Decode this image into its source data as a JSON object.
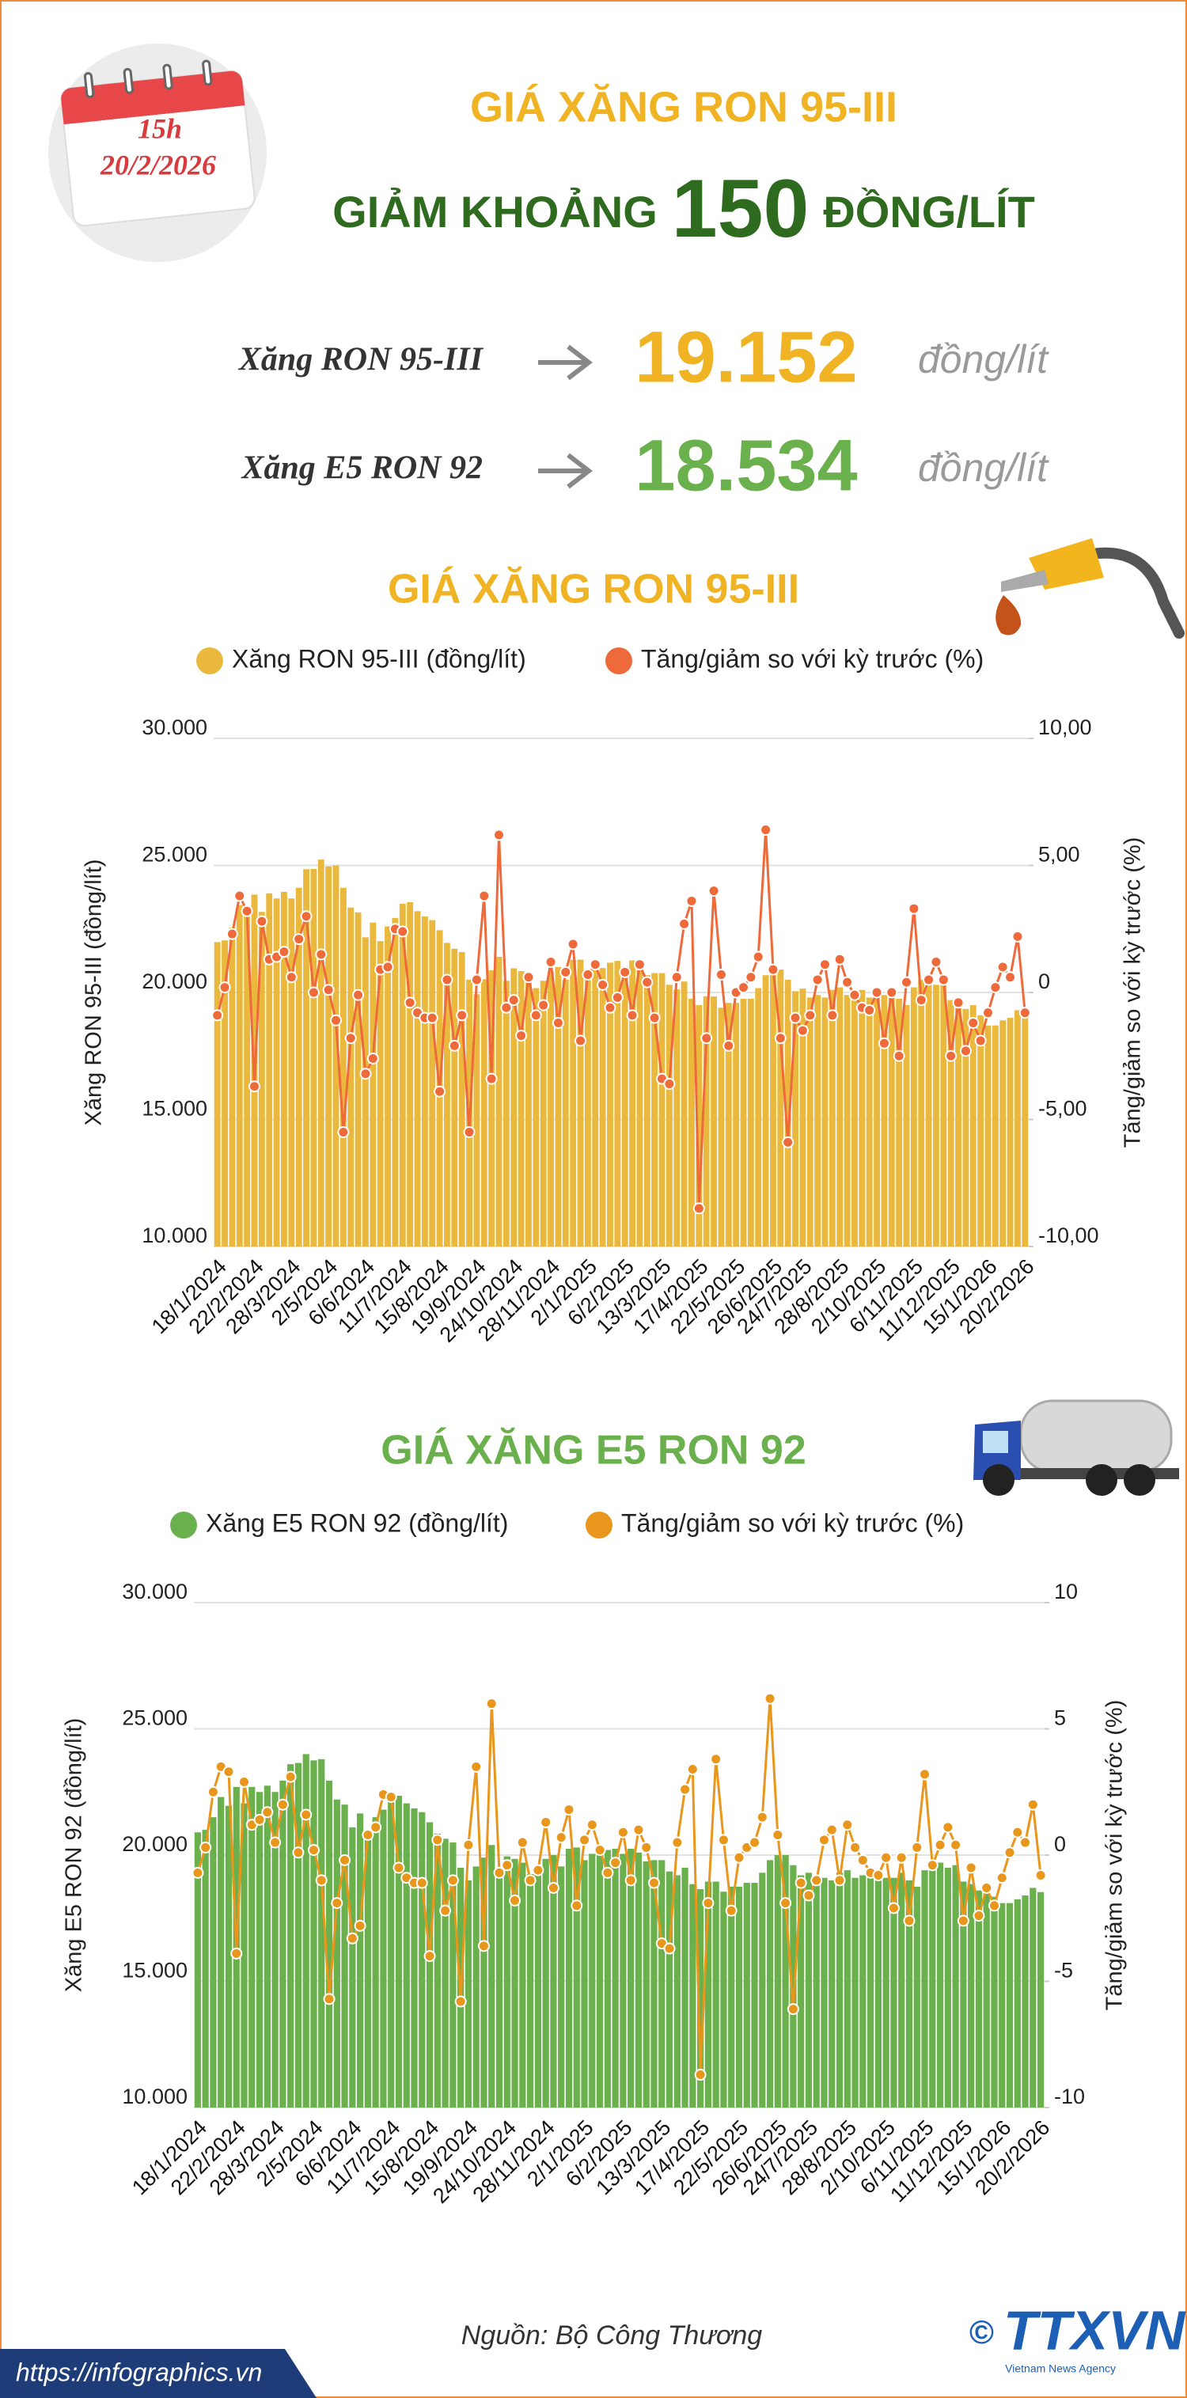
{
  "header": {
    "time": "15h",
    "date": "20/2/2026",
    "title": "GIÁ XĂNG RON 95-III",
    "subtitle_prefix": "GIẢM KHOẢNG",
    "subtitle_number": "150",
    "subtitle_suffix": "ĐỒNG/LÍT"
  },
  "prices": [
    {
      "label": "Xăng RON 95-III",
      "value": "19.152",
      "unit": "đồng/lít",
      "color": "#f0b323"
    },
    {
      "label": "Xăng E5 RON 92",
      "value": "18.534",
      "unit": "đồng/lít",
      "color": "#6ab04c"
    }
  ],
  "chart_data": [
    {
      "type": "bar_line",
      "title": "GIÁ XĂNG RON 95-III",
      "title_color": "#f0b323",
      "ylabel": "Xăng RON 95-III (đồng/lít)",
      "y2label": "Tăng/giảm so với kỳ trước (%)",
      "categories": [
        "18/1/2024",
        null,
        null,
        null,
        null,
        "22/2/2024",
        null,
        null,
        null,
        null,
        "28/3/2024",
        null,
        null,
        null,
        null,
        "2/5/2024",
        null,
        null,
        null,
        null,
        "6/6/2024",
        null,
        null,
        null,
        null,
        "11/7/2024",
        null,
        null,
        null,
        null,
        "15/8/2024",
        null,
        null,
        null,
        null,
        "19/9/2024",
        null,
        null,
        null,
        null,
        "24/10/2024",
        null,
        null,
        null,
        null,
        "28/11/2024",
        null,
        null,
        null,
        null,
        "2/1/2025",
        null,
        null,
        null,
        null,
        "6/2/2025",
        null,
        null,
        null,
        null,
        "13/3/2025",
        null,
        null,
        null,
        null,
        "17/4/2025",
        null,
        null,
        null,
        null,
        "22/5/2025",
        null,
        null,
        null,
        null,
        "26/6/2025",
        null,
        null,
        null,
        "24/7/2025",
        null,
        null,
        null,
        null,
        "28/8/2025",
        null,
        null,
        null,
        null,
        "2/10/2025",
        null,
        null,
        null,
        null,
        "6/11/2025",
        null,
        null,
        null,
        null,
        "11/12/2025",
        null,
        null,
        null,
        null,
        "15/1/2026",
        null,
        null,
        null,
        null,
        "20/2/2026"
      ],
      "series": [
        {
          "name": "Xăng RON 95-III (đồng/lít)",
          "type": "bar",
          "color": "#e9b83c",
          "values": [
            21980,
            22050,
            22550,
            23440,
            23050,
            23850,
            23170,
            23900,
            23700,
            23960,
            23700,
            24120,
            24850,
            24860,
            25230,
            24960,
            25000,
            24120,
            23340,
            23150,
            22170,
            22750,
            22020,
            22600,
            22930,
            23490,
            23550,
            23200,
            22990,
            22850,
            22450,
            21950,
            21720,
            21590,
            20500,
            19930,
            20520,
            20870,
            21400,
            20460,
            20950,
            20840,
            20660,
            20170,
            20460,
            20800,
            21000,
            20500,
            21280,
            21290,
            20740,
            21020,
            20960,
            21170,
            21240,
            21020,
            21260,
            21080,
            20680,
            20760,
            20760,
            20300,
            20120,
            20430,
            19750,
            19500,
            19850,
            19840,
            19400,
            19590,
            19590,
            19750,
            19750,
            20170,
            20680,
            20880,
            20900,
            20500,
            20050,
            20150,
            19800,
            19900,
            19800,
            20100,
            20200,
            19900,
            20000,
            20100,
            19800,
            19900,
            19900,
            20100,
            19750,
            19500,
            20200,
            20500,
            20500,
            20300,
            20400,
            19700,
            19600,
            19350,
            19500,
            19100,
            18700,
            18700,
            18900,
            19000,
            19300,
            19152
          ]
        },
        {
          "name": "Tăng/giảm so với kỳ trước (%)",
          "type": "line",
          "axis": "y2",
          "color": "#ee6a3a",
          "values": [
            -0.9,
            0.2,
            2.3,
            3.8,
            3.2,
            -3.7,
            2.8,
            1.3,
            1.4,
            1.6,
            0.6,
            2.1,
            3.0,
            0.0,
            1.5,
            0.1,
            -1.1,
            -5.5,
            -1.8,
            -0.1,
            -3.2,
            -2.6,
            0.9,
            1.0,
            2.5,
            2.4,
            -0.4,
            -0.8,
            -1.0,
            -1.0,
            -3.9,
            0.5,
            -2.1,
            -0.9,
            -5.5,
            0.5,
            3.8,
            -3.4,
            6.2,
            -0.6,
            -0.3,
            -1.7,
            0.6,
            -0.9,
            -0.5,
            1.2,
            -1.2,
            0.8,
            1.9,
            -1.9,
            0.7,
            1.1,
            0.3,
            -0.6,
            -0.2,
            0.8,
            -0.9,
            1.1,
            0.4,
            -1.0,
            -3.4,
            -3.6,
            0.6,
            2.7,
            3.6,
            -8.5,
            -1.8,
            4.0,
            0.7,
            -2.1,
            0.0,
            0.2,
            0.6,
            1.4,
            6.4,
            0.9,
            -1.8,
            -5.9,
            -1.0,
            -1.5,
            -0.9,
            0.5,
            1.1,
            -0.9,
            1.3,
            0.4,
            -0.1,
            -0.6,
            -0.7,
            0.0,
            -2.0,
            0.0,
            -2.5,
            0.4,
            3.3,
            -0.3,
            0.5,
            1.2,
            0.5,
            -2.5,
            -0.4,
            -2.3,
            -1.2,
            -1.9,
            -0.8,
            0.2,
            1.0,
            0.6,
            2.2,
            -0.8
          ]
        }
      ],
      "ylim": [
        10000,
        30000
      ],
      "yticks": [
        {
          "value": 10000,
          "label": "10.000"
        },
        {
          "value": 15000,
          "label": "15.000"
        },
        {
          "value": 20000,
          "label": "20.000"
        },
        {
          "value": 25000,
          "label": "25.000"
        },
        {
          "value": 30000,
          "label": "30.000"
        }
      ],
      "y2lim": [
        -10,
        10
      ],
      "y2ticks": [
        {
          "value": -10,
          "label": "-10,00"
        },
        {
          "value": -5,
          "label": "-5,00"
        },
        0,
        {
          "value": 5,
          "label": "5,00"
        },
        {
          "value": 10,
          "label": "10,00"
        }
      ],
      "grid": true
    },
    {
      "type": "bar_line",
      "title": "GIÁ XĂNG E5 RON 92",
      "title_color": "#6ab04c",
      "ylabel": "Xăng E5 RON 92 (đồng/lít)",
      "y2label": "Tăng/giảm so với kỳ trước (%)",
      "categories": [
        "18/1/2024",
        null,
        null,
        null,
        null,
        "22/2/2024",
        null,
        null,
        null,
        null,
        "28/3/2024",
        null,
        null,
        null,
        null,
        "2/5/2024",
        null,
        null,
        null,
        null,
        "6/6/2024",
        null,
        null,
        null,
        null,
        "11/7/2024",
        null,
        null,
        null,
        null,
        "15/8/2024",
        null,
        null,
        null,
        null,
        "19/9/2024",
        null,
        null,
        null,
        null,
        "24/10/2024",
        null,
        null,
        null,
        null,
        "28/11/2024",
        null,
        null,
        null,
        null,
        "2/1/2025",
        null,
        null,
        null,
        null,
        "6/2/2025",
        null,
        null,
        null,
        null,
        "13/3/2025",
        null,
        null,
        null,
        null,
        "17/4/2025",
        null,
        null,
        null,
        null,
        "22/5/2025",
        null,
        null,
        null,
        null,
        "26/6/2025",
        null,
        null,
        null,
        "24/7/2025",
        null,
        null,
        null,
        null,
        "28/8/2025",
        null,
        null,
        null,
        null,
        "2/10/2025",
        null,
        null,
        null,
        null,
        "6/11/2025",
        null,
        null,
        null,
        null,
        "11/12/2025",
        null,
        null,
        null,
        null,
        "15/1/2026",
        null,
        null,
        null,
        null,
        "20/2/2026"
      ],
      "series": [
        {
          "name": "Xăng E5 RON 92 (đồng/lít)",
          "type": "bar",
          "color": "#6ab04c",
          "values": [
            20900,
            21000,
            21500,
            22300,
            21950,
            22700,
            22050,
            22700,
            22500,
            22750,
            22500,
            22950,
            23600,
            23650,
            24000,
            23750,
            23800,
            22950,
            22200,
            22000,
            21100,
            21650,
            21000,
            21500,
            21800,
            22300,
            22350,
            22050,
            21850,
            21700,
            21300,
            20850,
            20650,
            20500,
            19500,
            19000,
            19550,
            19900,
            20400,
            19500,
            19950,
            19850,
            19700,
            19250,
            19500,
            19850,
            20000,
            19550,
            20250,
            20300,
            19800,
            20050,
            20000,
            20200,
            20250,
            20050,
            20250,
            20100,
            19750,
            19800,
            19800,
            19350,
            19200,
            19500,
            18850,
            18650,
            18950,
            18950,
            18550,
            18750,
            18750,
            18900,
            18900,
            19300,
            19800,
            20000,
            20000,
            19600,
            19200,
            19300,
            19000,
            19100,
            19000,
            19300,
            19400,
            19100,
            19200,
            19300,
            19000,
            19100,
            19100,
            19300,
            19000,
            18750,
            19400,
            19700,
            19700,
            19500,
            19600,
            18950,
            18850,
            18600,
            18750,
            18350,
            18100,
            18100,
            18250,
            18400,
            18700,
            18534
          ]
        },
        {
          "name": "Tăng/giảm so với kỳ trước (%)",
          "type": "line",
          "axis": "y2",
          "color": "#e8961c",
          "values": [
            -0.7,
            0.3,
            2.5,
            3.5,
            3.3,
            -3.9,
            2.9,
            1.2,
            1.4,
            1.7,
            0.5,
            2.0,
            3.1,
            0.1,
            1.6,
            0.2,
            -1.0,
            -5.7,
            -1.9,
            -0.2,
            -3.3,
            -2.8,
            0.8,
            1.1,
            2.4,
            2.3,
            -0.5,
            -0.9,
            -1.1,
            -1.1,
            -4.0,
            0.6,
            -2.2,
            -1.0,
            -5.8,
            0.4,
            3.5,
            -3.6,
            6.0,
            -0.7,
            -0.4,
            -1.8,
            0.5,
            -1.0,
            -0.6,
            1.3,
            -1.3,
            0.7,
            1.8,
            -2.0,
            0.6,
            1.2,
            0.2,
            -0.7,
            -0.3,
            0.9,
            -1.0,
            1.0,
            0.3,
            -1.1,
            -3.5,
            -3.7,
            0.5,
            2.6,
            3.4,
            -8.7,
            -1.9,
            3.8,
            0.6,
            -2.2,
            -0.1,
            0.3,
            0.5,
            1.5,
            6.2,
            0.8,
            -1.9,
            -6.1,
            -1.1,
            -1.6,
            -1.0,
            0.6,
            1.0,
            -1.0,
            1.2,
            0.3,
            -0.2,
            -0.7,
            -0.8,
            -0.1,
            -2.1,
            -0.1,
            -2.6,
            0.3,
            3.2,
            -0.4,
            0.4,
            1.1,
            0.4,
            -2.6,
            -0.5,
            -2.4,
            -1.3,
            -2.0,
            -0.9,
            0.1,
            0.9,
            0.5,
            2.0,
            -0.8
          ]
        }
      ],
      "ylim": [
        10000,
        30000
      ],
      "yticks": [
        {
          "value": 10000,
          "label": "10.000"
        },
        {
          "value": 15000,
          "label": "15.000"
        },
        {
          "value": 20000,
          "label": "20.000"
        },
        {
          "value": 25000,
          "label": "25.000"
        },
        {
          "value": 30000,
          "label": "30.000"
        }
      ],
      "y2lim": [
        -10,
        10
      ],
      "y2ticks": [
        -10,
        -5,
        0,
        5,
        10
      ],
      "grid": true
    }
  ],
  "footer": {
    "source": "Nguồn: Bộ Công Thương",
    "url": "https://infographics.vn",
    "logo": "TTXVN",
    "agency": "Vietnam News Agency"
  }
}
